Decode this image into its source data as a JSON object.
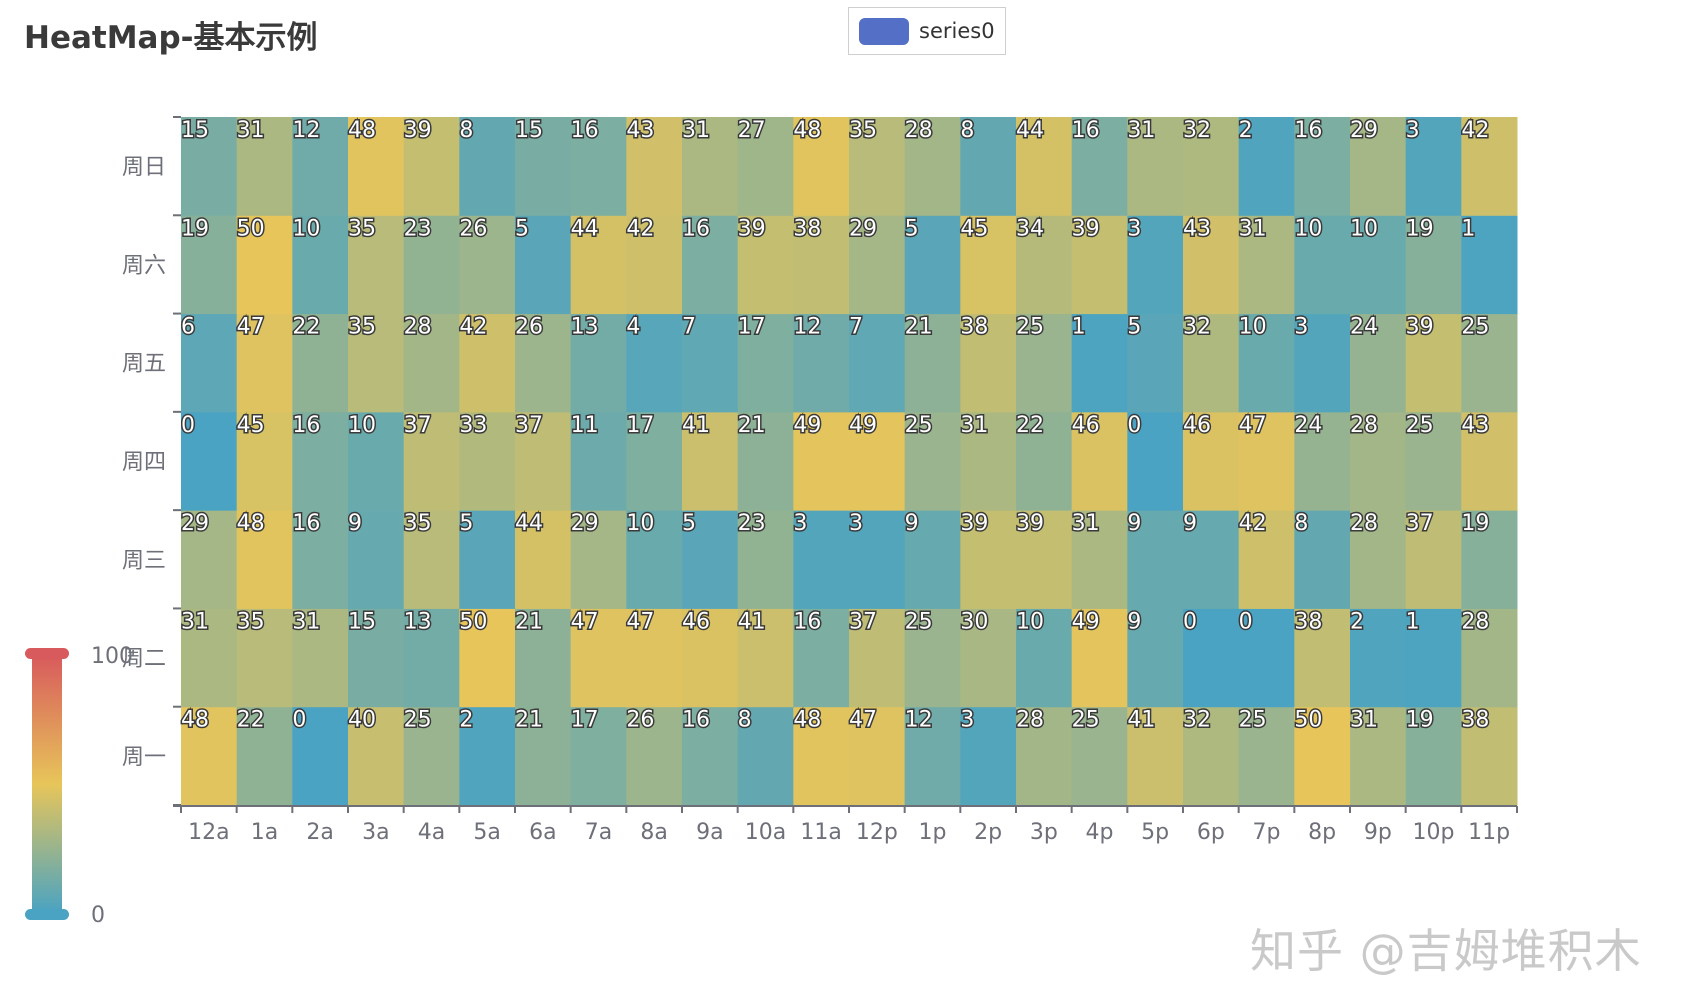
{
  "title": "HeatMap-基本示例",
  "legend": {
    "label": "series0",
    "color": "#5470c6"
  },
  "watermark": "知乎 @吉姆堆积木",
  "colors": [
    "#4aa3c2",
    "#e7c55a",
    "#d85a5c"
  ],
  "chart_data": {
    "type": "heatmap",
    "x_categories": [
      "12a",
      "1a",
      "2a",
      "3a",
      "4a",
      "5a",
      "6a",
      "7a",
      "8a",
      "9a",
      "10a",
      "11a",
      "12p",
      "1p",
      "2p",
      "3p",
      "4p",
      "5p",
      "6p",
      "7p",
      "8p",
      "9p",
      "10p",
      "11p"
    ],
    "y_categories": [
      "周一",
      "周二",
      "周三",
      "周四",
      "周五",
      "周六",
      "周日"
    ],
    "visual_map": {
      "min": 0,
      "max": 100,
      "min_label": "0",
      "max_label": "100"
    },
    "series": [
      {
        "name": "series0",
        "rows": [
          [
            48,
            22,
            0,
            40,
            25,
            2,
            21,
            17,
            26,
            16,
            8,
            48,
            47,
            12,
            3,
            28,
            25,
            41,
            32,
            25,
            50,
            31,
            19,
            38
          ],
          [
            31,
            35,
            31,
            15,
            13,
            50,
            21,
            47,
            47,
            46,
            41,
            16,
            37,
            25,
            30,
            10,
            49,
            9,
            0,
            0,
            38,
            2,
            1,
            28
          ],
          [
            29,
            48,
            16,
            9,
            35,
            5,
            44,
            29,
            10,
            5,
            23,
            3,
            3,
            9,
            39,
            39,
            31,
            9,
            9,
            42,
            8,
            28,
            37,
            19
          ],
          [
            0,
            45,
            16,
            10,
            37,
            33,
            37,
            11,
            17,
            41,
            21,
            49,
            49,
            25,
            31,
            22,
            46,
            0,
            46,
            47,
            24,
            28,
            25,
            43
          ],
          [
            6,
            47,
            22,
            35,
            28,
            42,
            26,
            13,
            4,
            7,
            17,
            12,
            7,
            21,
            38,
            25,
            1,
            5,
            32,
            10,
            3,
            24,
            39,
            25
          ],
          [
            19,
            50,
            10,
            35,
            23,
            26,
            5,
            44,
            42,
            16,
            39,
            38,
            29,
            5,
            45,
            34,
            39,
            3,
            43,
            31,
            10,
            10,
            19,
            1
          ],
          [
            15,
            31,
            12,
            48,
            39,
            8,
            15,
            16,
            43,
            31,
            27,
            48,
            35,
            28,
            8,
            44,
            16,
            31,
            32,
            2,
            16,
            29,
            3,
            42
          ]
        ]
      }
    ]
  }
}
